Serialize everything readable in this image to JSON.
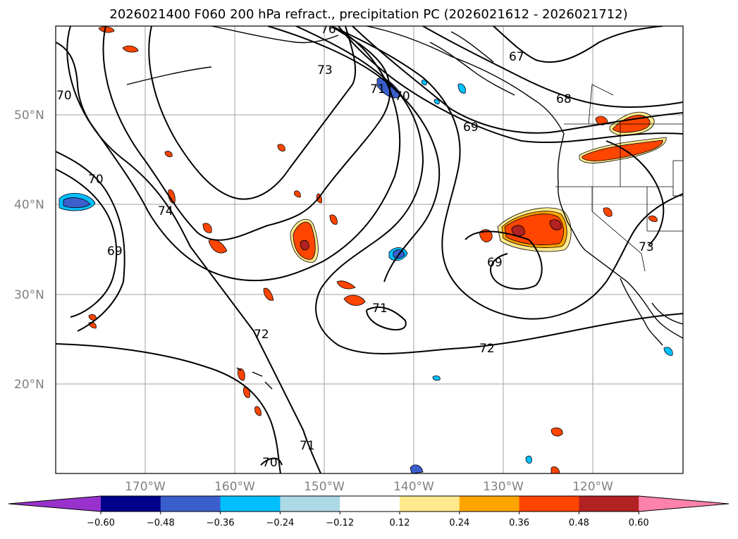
{
  "title": "2026021400 F060 200 hPa refract., precipitation PC (2026021612 - 2026021712)",
  "longitude_labels": [
    "170°W",
    "160°W",
    "150°W",
    "140°W",
    "130°W",
    "120°W"
  ],
  "latitude_labels": [
    "50°N",
    "40°N",
    "30°N",
    "20°N"
  ],
  "contour_labels": [
    "76",
    "73",
    "71",
    "70",
    "67",
    "68",
    "69",
    "70",
    "70",
    "74",
    "69",
    "69",
    "73",
    "71",
    "72",
    "72",
    "71",
    "70"
  ],
  "colorbar": {
    "tick_labels": [
      "−0.60",
      "−0.48",
      "−0.36",
      "−0.24",
      "−0.12",
      "0.12",
      "0.24",
      "0.36",
      "0.48",
      "0.60"
    ],
    "colors": [
      "#9932cc",
      "#00008b",
      "#3a5fcd",
      "#00bfff",
      "#add8e6",
      "#ffffff",
      "#ffe98c",
      "#ffa500",
      "#ff4500",
      "#b22222",
      "#ff82ab"
    ]
  },
  "colors": {
    "contour": "#000000",
    "coast": "#000000",
    "grid": "#a0a0a0",
    "axis_text": "#808080"
  }
}
